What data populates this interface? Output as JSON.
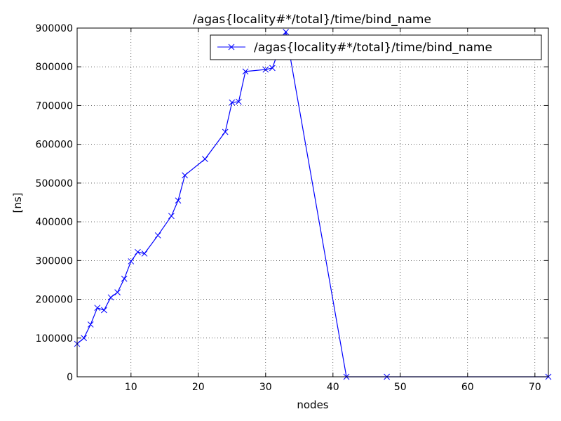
{
  "chart_data": {
    "type": "line",
    "title": "/agas{locality#*/total}/time/bind_name",
    "xlabel": "nodes",
    "ylabel": "[ns]",
    "xlim": [
      2,
      72
    ],
    "ylim": [
      0,
      900000
    ],
    "xticks": [
      10,
      20,
      30,
      40,
      50,
      60,
      70
    ],
    "yticks": [
      0,
      100000,
      200000,
      300000,
      400000,
      500000,
      600000,
      700000,
      800000,
      900000
    ],
    "grid": true,
    "legend_position": "top-right",
    "series": [
      {
        "name": "/agas{locality#*/total}/time/bind_name",
        "color": "#0000ff",
        "marker": "x",
        "x": [
          2,
          3,
          4,
          5,
          6,
          7,
          8,
          9,
          10,
          11,
          12,
          14,
          16,
          17,
          18,
          21,
          24,
          25,
          26,
          27,
          30,
          31,
          32,
          33,
          42,
          48,
          72
        ],
        "y": [
          85000,
          100000,
          135000,
          178000,
          172000,
          205000,
          218000,
          253000,
          298000,
          322000,
          318000,
          365000,
          415000,
          455000,
          520000,
          562000,
          632000,
          708000,
          710000,
          788000,
          793000,
          797000,
          845000,
          890000,
          0,
          0,
          0
        ]
      }
    ]
  }
}
